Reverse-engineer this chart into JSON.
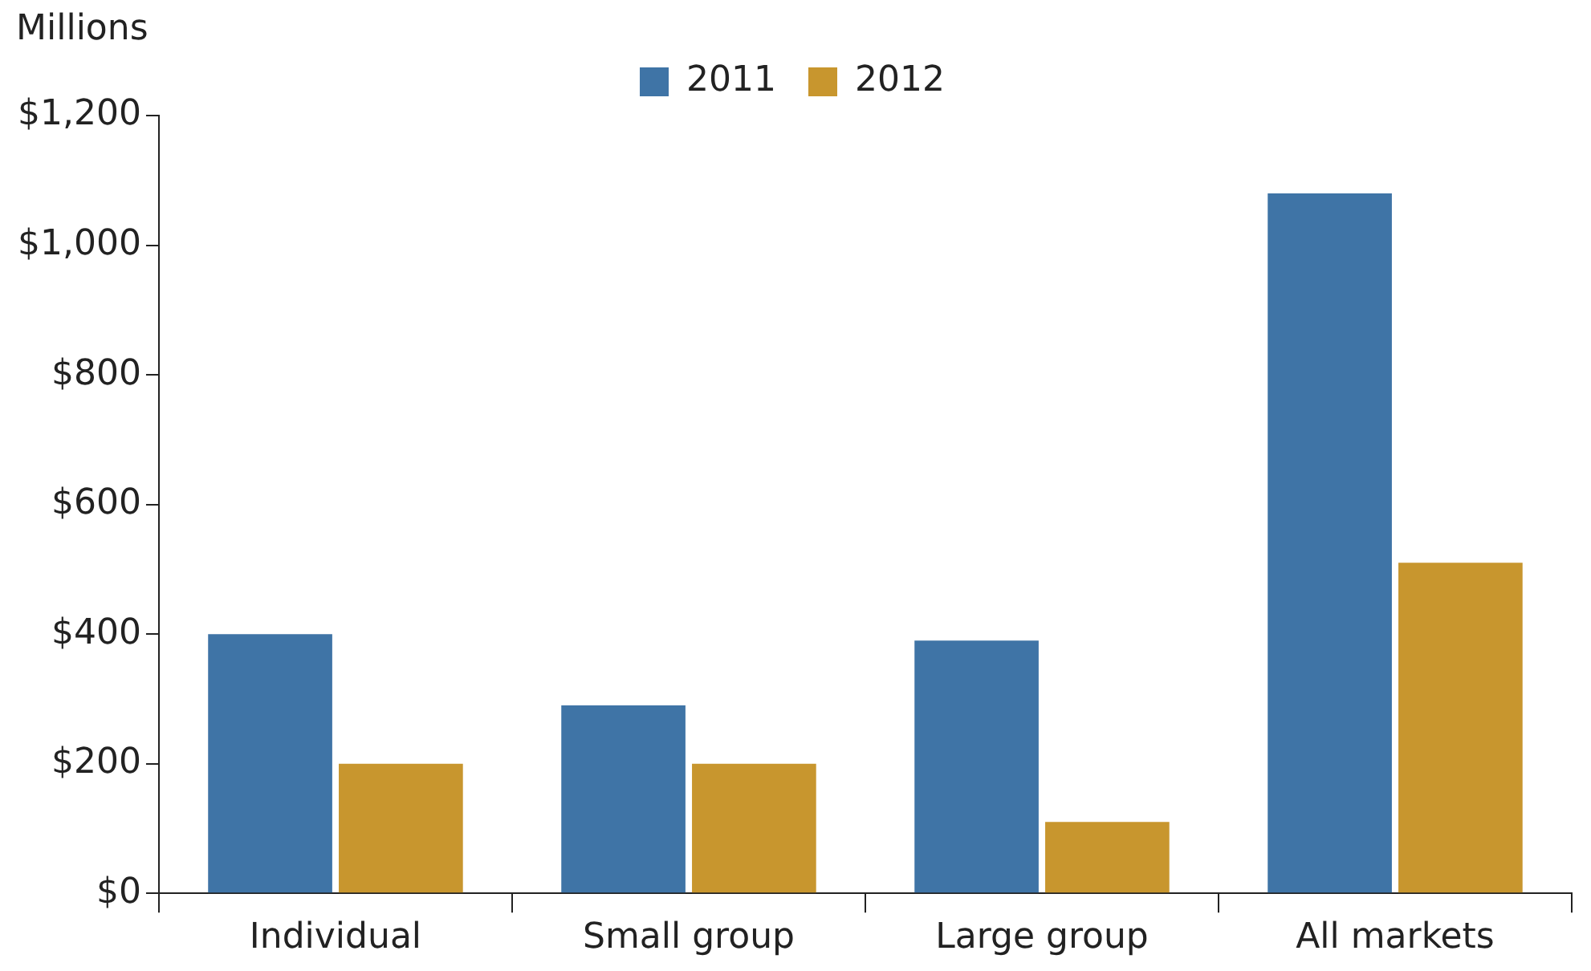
{
  "chart_data": {
    "type": "bar",
    "ylabel": "Millions",
    "categories": [
      "Individual",
      "Small group",
      "Large group",
      "All markets"
    ],
    "series": [
      {
        "name": "2011",
        "color": "#3f74a6",
        "values": [
          400,
          290,
          390,
          1080
        ]
      },
      {
        "name": "2012",
        "color": "#c8962e",
        "values": [
          200,
          200,
          110,
          510
        ]
      }
    ],
    "ylim": [
      0,
      1200
    ],
    "yticks": [
      {
        "value": 0,
        "label": "$0"
      },
      {
        "value": 200,
        "label": "$200"
      },
      {
        "value": 400,
        "label": "$400"
      },
      {
        "value": 600,
        "label": "$600"
      },
      {
        "value": 800,
        "label": "$800"
      },
      {
        "value": 1000,
        "label": "$1,000"
      },
      {
        "value": 1200,
        "label": "$1,200"
      }
    ],
    "grid": false,
    "legend": "top"
  }
}
